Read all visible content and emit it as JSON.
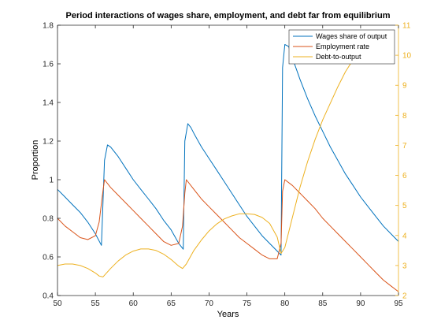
{
  "chart_data": {
    "type": "line",
    "title": "Period interactions of wages share, employment, and debt far from equilibrium",
    "xlabel": "Years",
    "ylabel": "Proportion",
    "y2label": "",
    "xlim": [
      50,
      95
    ],
    "ylim": [
      0.4,
      1.8
    ],
    "y2lim": [
      2,
      11
    ],
    "xticks": [
      50,
      55,
      60,
      65,
      70,
      75,
      80,
      85,
      90,
      95
    ],
    "yticks": [
      0.4,
      0.6,
      0.8,
      1.0,
      1.2,
      1.4,
      1.6,
      1.8
    ],
    "ytick_labels": [
      "0.4",
      "0.6",
      "0.8",
      "1",
      "1.2",
      "1.4",
      "1.6",
      "1.8"
    ],
    "y2ticks": [
      2,
      3,
      4,
      5,
      6,
      7,
      8,
      9,
      10,
      11
    ],
    "legend_position": "top-right",
    "grid": false,
    "colors": {
      "axis_left": "#262626",
      "axis_right": "#EDB120"
    },
    "series": [
      {
        "name": "Wages share of output",
        "color": "#0072BD",
        "axis": "left",
        "x": [
          50,
          51,
          52,
          53,
          54,
          55,
          55.8,
          56.2,
          56.6,
          57,
          58,
          59,
          60,
          61,
          62,
          63,
          64,
          65,
          66,
          66.6,
          66.8,
          67.2,
          67.6,
          68,
          69,
          70,
          71,
          72,
          73,
          74,
          75,
          76,
          77,
          78,
          79,
          79.5,
          79.7,
          80,
          80.5,
          81,
          82,
          83,
          84,
          85,
          86,
          87,
          88,
          89,
          90,
          91,
          92,
          93,
          94,
          95
        ],
        "y": [
          0.95,
          0.91,
          0.87,
          0.83,
          0.78,
          0.72,
          0.66,
          1.1,
          1.18,
          1.17,
          1.12,
          1.06,
          1.0,
          0.95,
          0.9,
          0.85,
          0.79,
          0.74,
          0.67,
          0.64,
          1.2,
          1.29,
          1.27,
          1.24,
          1.17,
          1.11,
          1.05,
          0.99,
          0.93,
          0.87,
          0.81,
          0.76,
          0.71,
          0.67,
          0.63,
          0.61,
          1.58,
          1.7,
          1.69,
          1.63,
          1.52,
          1.42,
          1.33,
          1.25,
          1.17,
          1.1,
          1.03,
          0.97,
          0.91,
          0.86,
          0.81,
          0.76,
          0.72,
          0.68
        ]
      },
      {
        "name": "Employment rate",
        "color": "#D95319",
        "axis": "left",
        "x": [
          50,
          51,
          52,
          53,
          54,
          55,
          55.5,
          56,
          56.2,
          57,
          58,
          59,
          60,
          61,
          62,
          63,
          64,
          65,
          66,
          66.5,
          66.8,
          67,
          68,
          69,
          70,
          71,
          72,
          73,
          74,
          75,
          76,
          77,
          78,
          79,
          79.5,
          79.7,
          80,
          81,
          82,
          83,
          84,
          85,
          86,
          87,
          88,
          89,
          90,
          91,
          92,
          93,
          94,
          95
        ],
        "y": [
          0.8,
          0.76,
          0.73,
          0.7,
          0.69,
          0.71,
          0.78,
          0.94,
          1.0,
          0.96,
          0.92,
          0.88,
          0.84,
          0.8,
          0.76,
          0.72,
          0.68,
          0.66,
          0.67,
          0.76,
          0.93,
          1.0,
          0.95,
          0.9,
          0.86,
          0.82,
          0.78,
          0.74,
          0.7,
          0.67,
          0.64,
          0.61,
          0.59,
          0.59,
          0.67,
          0.94,
          1.0,
          0.97,
          0.93,
          0.89,
          0.85,
          0.8,
          0.76,
          0.72,
          0.68,
          0.64,
          0.6,
          0.56,
          0.52,
          0.48,
          0.45,
          0.42
        ]
      },
      {
        "name": "Debt-to-output",
        "color": "#EDB120",
        "axis": "right",
        "x": [
          50,
          51,
          52,
          53,
          54,
          55,
          55.5,
          56,
          57,
          58,
          59,
          60,
          61,
          62,
          63,
          64,
          65,
          66,
          66.5,
          67,
          68,
          69,
          70,
          71,
          72,
          73,
          74,
          75,
          76,
          77,
          78,
          79,
          79.5,
          80,
          81,
          82,
          83,
          84,
          85,
          86,
          87,
          88,
          89,
          90,
          91,
          92
        ],
        "y": [
          3.0,
          3.05,
          3.05,
          3.0,
          2.9,
          2.75,
          2.65,
          2.62,
          2.9,
          3.15,
          3.35,
          3.48,
          3.55,
          3.55,
          3.5,
          3.38,
          3.2,
          2.98,
          2.9,
          3.05,
          3.5,
          3.85,
          4.15,
          4.38,
          4.55,
          4.65,
          4.72,
          4.72,
          4.7,
          4.6,
          4.4,
          3.95,
          3.4,
          3.6,
          4.6,
          5.6,
          6.45,
          7.2,
          7.85,
          8.4,
          8.95,
          9.45,
          9.85,
          10.2,
          10.5,
          10.75
        ]
      }
    ]
  }
}
